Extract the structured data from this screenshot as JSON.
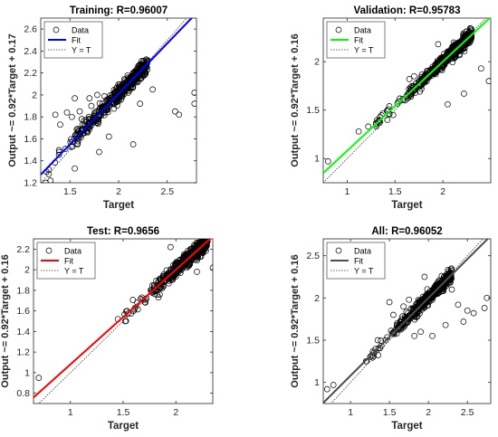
{
  "chart_data": [
    {
      "type": "scatter",
      "title": "Training: R=0.96007",
      "xlabel": "Target",
      "ylabel": "Output ~= 0.92*Target + 0.17",
      "xlim": [
        1.2,
        2.8
      ],
      "ylim": [
        1.2,
        2.7
      ],
      "xticks": [
        "1.5",
        "2",
        "2.5"
      ],
      "yticks": [
        "1.2",
        "1.4",
        "1.6",
        "1.8",
        "2",
        "2.2",
        "2.4",
        "2.6"
      ],
      "fit": {
        "slope": 0.92,
        "intercept": 0.17,
        "color": "#0000ff"
      },
      "legend": {
        "placement": "top-left",
        "entries": [
          "Data",
          "Fit",
          "Y = T"
        ]
      },
      "cloud": {
        "x_start": 1.25,
        "x_end": 2.3,
        "x_dense_start": 1.5
      },
      "outliers": [
        [
          1.55,
          1.97
        ],
        [
          1.7,
          1.97
        ],
        [
          1.78,
          2.0
        ],
        [
          1.47,
          1.84
        ],
        [
          1.52,
          1.8
        ],
        [
          1.62,
          1.78
        ],
        [
          1.9,
          1.62
        ],
        [
          2.15,
          1.55
        ],
        [
          2.35,
          2.05
        ],
        [
          2.58,
          1.85
        ],
        [
          2.62,
          1.82
        ],
        [
          2.78,
          1.92
        ],
        [
          2.78,
          2.02
        ],
        [
          1.4,
          1.73
        ],
        [
          1.35,
          1.82
        ],
        [
          1.6,
          1.85
        ],
        [
          2.22,
          1.92
        ],
        [
          1.8,
          1.48
        ],
        [
          1.55,
          1.33
        ],
        [
          1.25,
          1.2
        ],
        [
          1.3,
          1.22
        ],
        [
          1.72,
          1.9
        ]
      ],
      "data_label": "Data",
      "fit_label": "Fit",
      "yt_label": "Y = T"
    },
    {
      "type": "scatter",
      "title": "Validation: R=0.95783",
      "xlabel": "Target",
      "ylabel": "Output ~= 0.92*Target + 0.16",
      "xlim": [
        0.75,
        2.5
      ],
      "ylim": [
        0.75,
        2.45
      ],
      "xticks": [
        "1",
        "1.5",
        "2"
      ],
      "yticks": [
        "1",
        "1.5",
        "2"
      ],
      "fit": {
        "slope": 0.92,
        "intercept": 0.16,
        "color": "#00ff00"
      },
      "legend": {
        "placement": "top-left",
        "entries": [
          "Data",
          "Fit",
          "Y = T"
        ]
      },
      "cloud": {
        "x_start": 1.3,
        "x_end": 2.3,
        "x_dense_start": 1.6
      },
      "outliers": [
        [
          0.8,
          0.97
        ],
        [
          1.12,
          1.28
        ],
        [
          1.22,
          1.33
        ],
        [
          1.42,
          1.4
        ],
        [
          1.48,
          1.45
        ],
        [
          1.55,
          1.62
        ],
        [
          1.65,
          1.82
        ],
        [
          1.7,
          1.85
        ],
        [
          2.05,
          1.56
        ],
        [
          2.22,
          1.67
        ],
        [
          2.4,
          1.93
        ],
        [
          2.48,
          1.8
        ],
        [
          1.95,
          2.18
        ]
      ],
      "data_label": "Data",
      "fit_label": "Fit",
      "yt_label": "Y = T"
    },
    {
      "type": "scatter",
      "title": "Test: R=0.9656",
      "xlabel": "Target",
      "ylabel": "Output ~= 0.92*Target + 0.16",
      "xlim": [
        0.65,
        2.35
      ],
      "ylim": [
        0.7,
        2.3
      ],
      "xticks": [
        "1",
        "1.5",
        "2"
      ],
      "yticks": [
        "0.8",
        "1",
        "1.2",
        "1.4",
        "1.6",
        "1.8",
        "2",
        "2.2"
      ],
      "fit": {
        "slope": 0.92,
        "intercept": 0.16,
        "color": "#ff0000"
      },
      "legend": {
        "placement": "top-left",
        "entries": [
          "Data",
          "Fit",
          "Y = T"
        ]
      },
      "cloud": {
        "x_start": 1.5,
        "x_end": 2.3,
        "x_dense_start": 1.75
      },
      "outliers": [
        [
          0.7,
          0.95
        ],
        [
          1.45,
          1.52
        ],
        [
          1.52,
          1.5
        ],
        [
          1.6,
          1.6
        ],
        [
          1.72,
          1.72
        ],
        [
          2.35,
          2.02
        ],
        [
          2.2,
          1.98
        ],
        [
          1.95,
          2.22
        ]
      ],
      "data_label": "Data",
      "fit_label": "Fit",
      "yt_label": "Y = T"
    },
    {
      "type": "scatter",
      "title": "All: R=0.96052",
      "xlabel": "Target",
      "ylabel": "Output ~= 0.92*Target + 0.16",
      "xlim": [
        0.65,
        2.8
      ],
      "ylim": [
        0.75,
        2.7
      ],
      "xticks": [
        "1",
        "1.5",
        "2",
        "2.5"
      ],
      "yticks": [
        "1",
        "1.5",
        "2",
        "2.5"
      ],
      "fit": {
        "slope": 0.92,
        "intercept": 0.16,
        "color": "#4d4d4d"
      },
      "legend": {
        "placement": "top-left",
        "entries": [
          "Data",
          "Fit",
          "Y = T"
        ]
      },
      "cloud": {
        "x_start": 1.2,
        "x_end": 2.3,
        "x_dense_start": 1.5
      },
      "outliers": [
        [
          0.7,
          0.92
        ],
        [
          0.78,
          0.97
        ],
        [
          1.2,
          1.25
        ],
        [
          1.3,
          1.35
        ],
        [
          1.45,
          1.5
        ],
        [
          1.5,
          1.95
        ],
        [
          1.55,
          1.8
        ],
        [
          1.6,
          1.7
        ],
        [
          1.68,
          1.9
        ],
        [
          1.75,
          1.98
        ],
        [
          1.82,
          1.55
        ],
        [
          1.9,
          1.6
        ],
        [
          2.05,
          1.55
        ],
        [
          2.22,
          1.68
        ],
        [
          2.38,
          1.92
        ],
        [
          2.5,
          1.85
        ],
        [
          2.58,
          1.82
        ],
        [
          2.72,
          1.88
        ],
        [
          2.75,
          2.0
        ],
        [
          2.45,
          1.72
        ],
        [
          1.35,
          1.5
        ],
        [
          1.95,
          2.25
        ],
        [
          2.3,
          2.1
        ]
      ],
      "data_label": "Data",
      "fit_label": "Fit",
      "yt_label": "Y = T"
    }
  ]
}
